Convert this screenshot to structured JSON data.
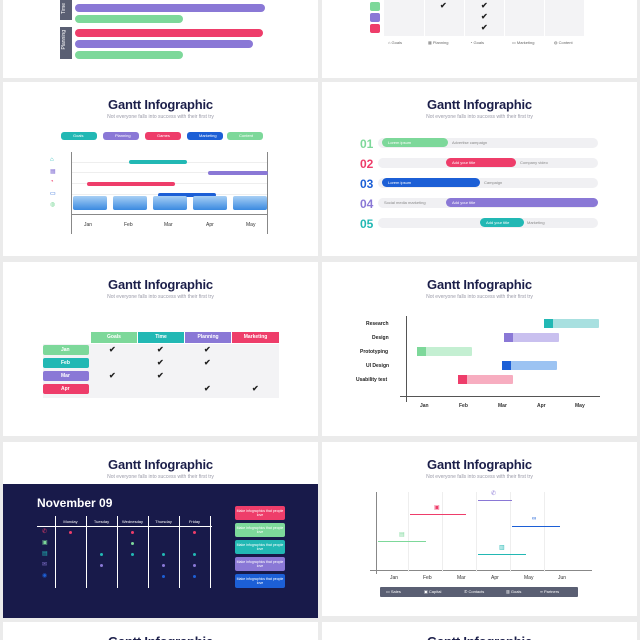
{
  "slide_title": "Gantt Infographic",
  "slide_subtitle": "Not everyone falls into success with their first try",
  "top_left": {
    "groups": [
      "Time",
      "Planning"
    ]
  },
  "top_right": {
    "legend": [
      "Goals",
      "Planning",
      "Goals",
      "Marketing",
      "Content"
    ]
  },
  "slide2": {
    "legend": [
      "Goals",
      "Planning",
      "Games",
      "Marketing",
      "Content"
    ],
    "months": [
      "Jan",
      "Feb",
      "Mar",
      "Apr",
      "May"
    ]
  },
  "slide3": {
    "rows": [
      {
        "num": "01",
        "color": "#7dd89a",
        "label": "Lorem ipsum",
        "note": "Advertise campaign"
      },
      {
        "num": "02",
        "color": "#ee3d6a",
        "label": "Add your title",
        "note": "Company video"
      },
      {
        "num": "03",
        "color": "#1c5fd6",
        "label": "Lorem ipsum",
        "note": "Campaign"
      },
      {
        "num": "04",
        "color": "#8a78d6",
        "label": "Add your title",
        "note": "Social media marketing"
      },
      {
        "num": "05",
        "color": "#22b8b4",
        "label": "Add your title",
        "note": "Marketing"
      }
    ]
  },
  "slide4": {
    "headers": [
      "Goals",
      "Time",
      "Planning",
      "Marketing"
    ],
    "rows": [
      "Jan",
      "Feb",
      "Mar",
      "Apr"
    ]
  },
  "slide5": {
    "tasks": [
      "Research",
      "Design",
      "Prototyping",
      "UI Design",
      "Usability test"
    ],
    "months": [
      "Jan",
      "Feb",
      "Mar",
      "Apr",
      "May"
    ]
  },
  "slide6": {
    "date": "November 09",
    "days": [
      "Monday",
      "Tuesday",
      "Wednesday",
      "Thursday",
      "Friday"
    ],
    "note_text": "Make infographics that people love"
  },
  "slide7": {
    "months": [
      "Jan",
      "Feb",
      "Mar",
      "Apr",
      "May",
      "Jun"
    ],
    "legend": [
      "Sales",
      "Capital",
      "Contacts",
      "Goals",
      "Partners"
    ]
  }
}
